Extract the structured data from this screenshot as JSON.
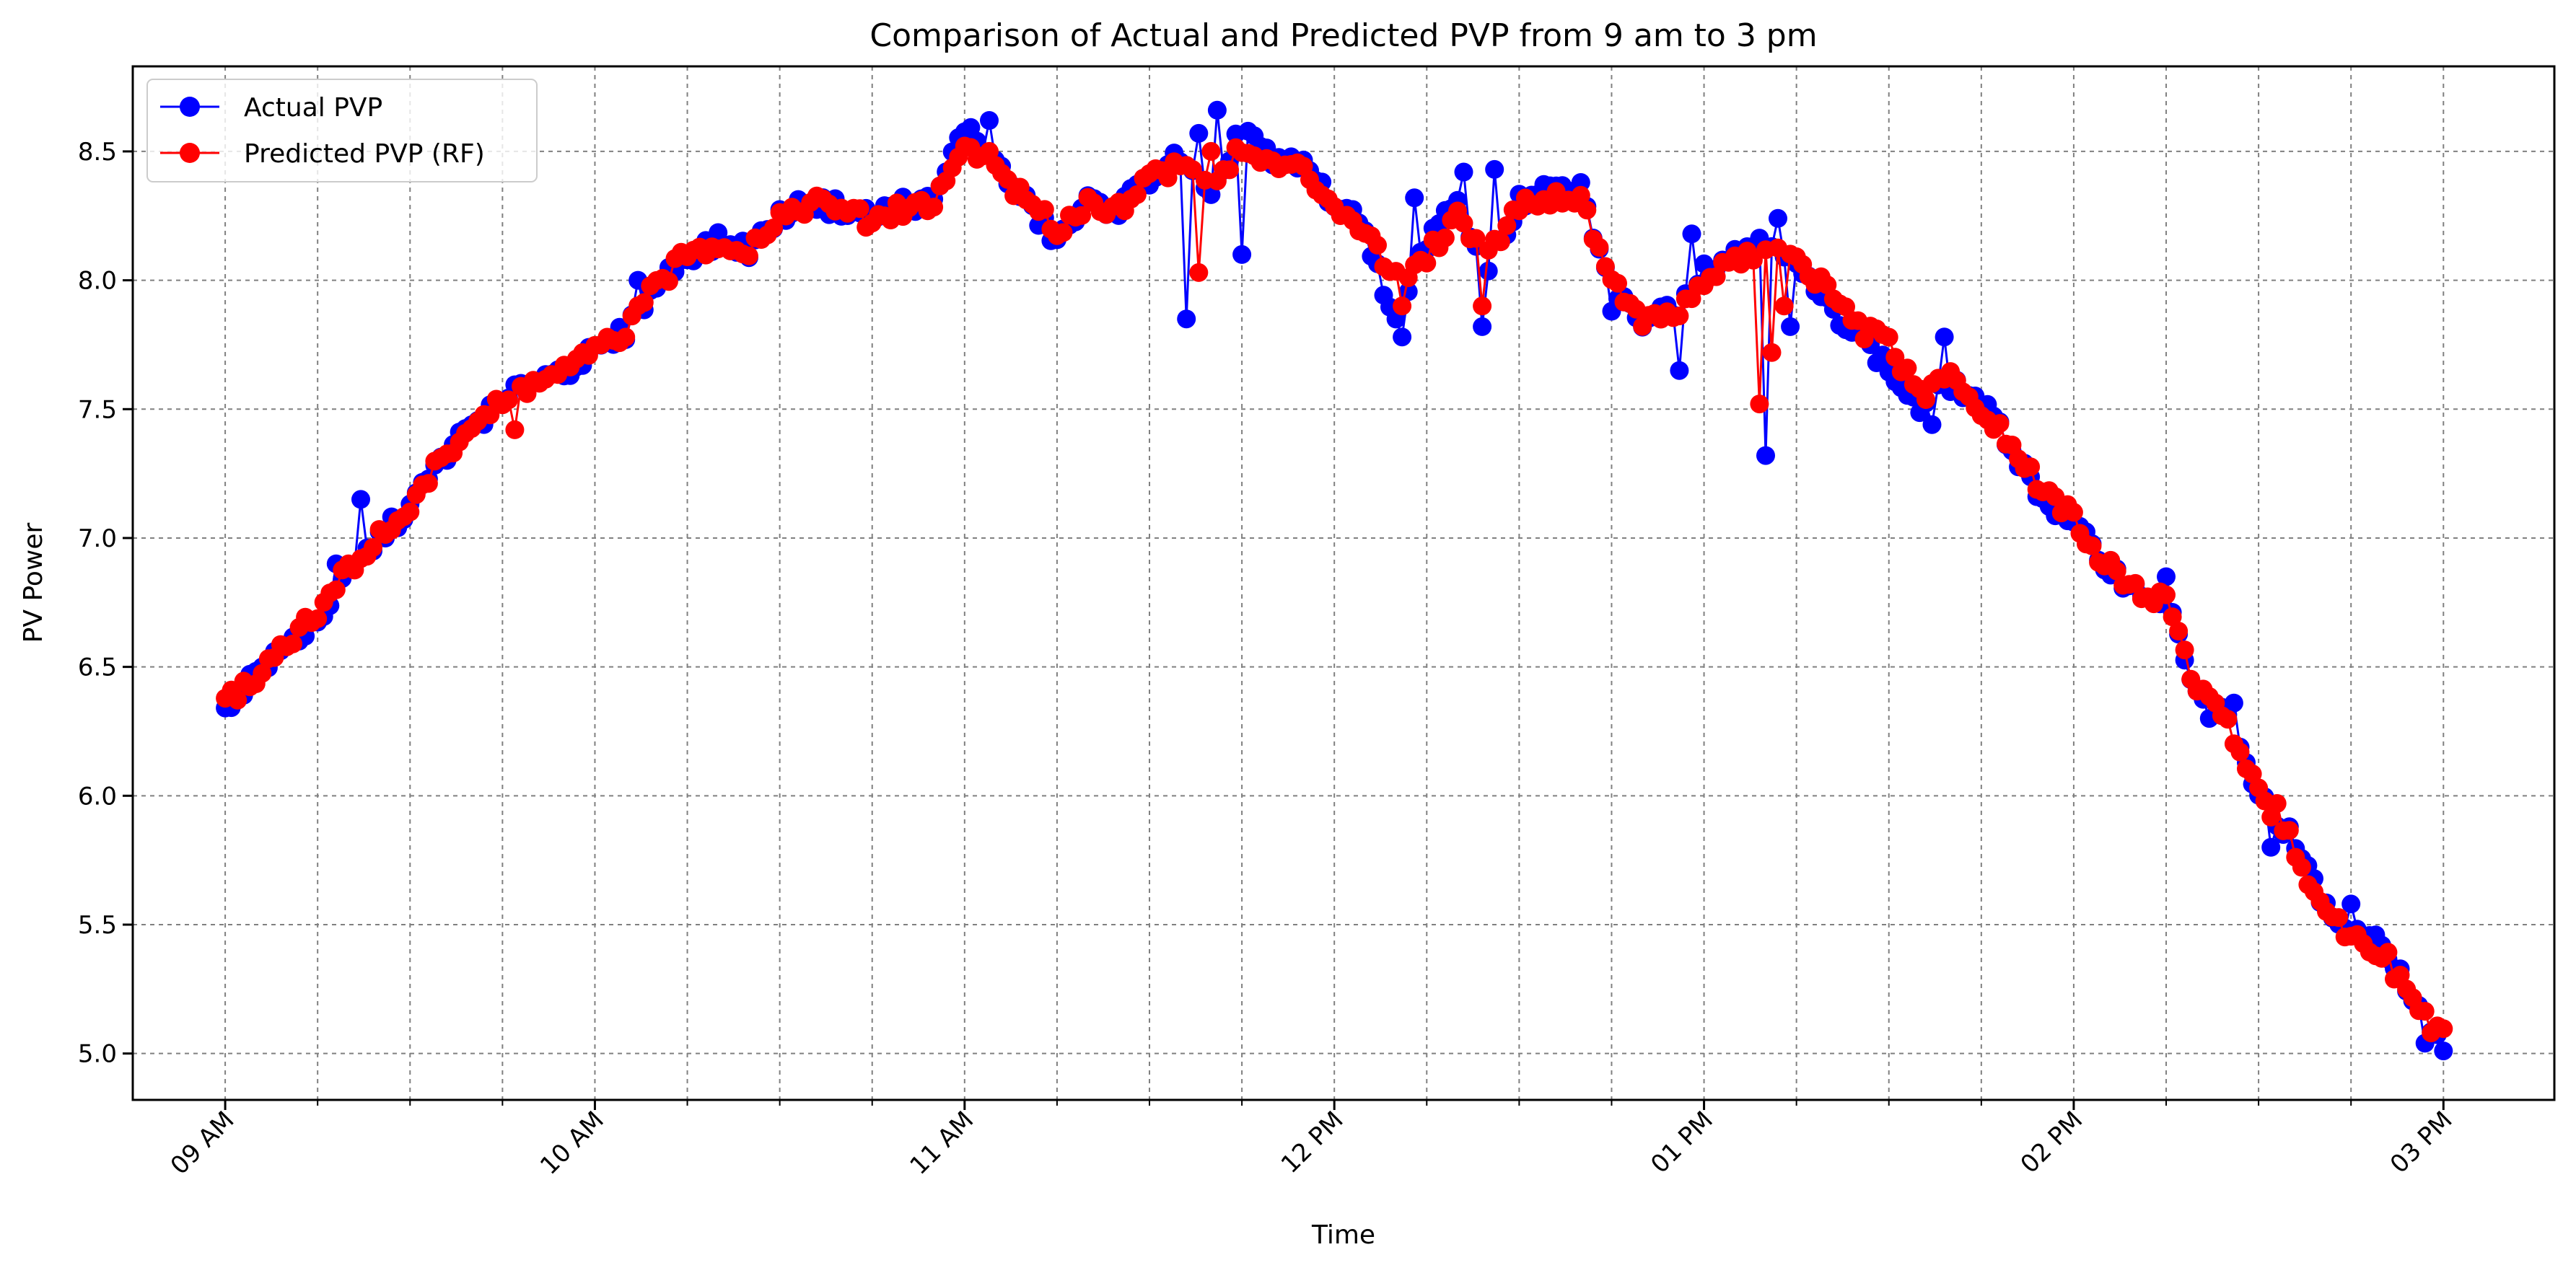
{
  "chart_data": {
    "type": "line",
    "title": "Comparison of Actual and Predicted PVP from 9 am to 3 pm",
    "xlabel": "Time",
    "ylabel": "PV Power",
    "xlim": [
      "08:45",
      "15:18"
    ],
    "ylim": [
      4.82,
      8.83
    ],
    "x_ticks": [
      "09 AM",
      "10 AM",
      "11 AM",
      "12 PM",
      "01 PM",
      "02 PM",
      "03 PM"
    ],
    "y_ticks": [
      "5.0",
      "5.5",
      "6.0",
      "6.5",
      "7.0",
      "7.5",
      "8.0",
      "8.5"
    ],
    "grid": true,
    "legend_position": "top-left",
    "x_sample_interval_minutes": 1,
    "x_start": "09:00",
    "x_end": "15:00",
    "series": [
      {
        "name": "Actual PVP",
        "color": "#0000ff",
        "marker": "circle",
        "anchors": [
          [
            "09:00",
            6.33
          ],
          [
            "09:05",
            6.48
          ],
          [
            "09:10",
            6.58
          ],
          [
            "09:15",
            6.68
          ],
          [
            "09:20",
            6.86
          ],
          [
            "09:25",
            7.0
          ],
          [
            "09:30",
            7.12
          ],
          [
            "09:35",
            7.3
          ],
          [
            "09:40",
            7.44
          ],
          [
            "09:45",
            7.52
          ],
          [
            "09:50",
            7.62
          ],
          [
            "09:55",
            7.65
          ],
          [
            "10:00",
            7.72
          ],
          [
            "10:05",
            7.8
          ],
          [
            "10:10",
            7.98
          ],
          [
            "10:15",
            8.1
          ],
          [
            "10:20",
            8.15
          ],
          [
            "10:25",
            8.12
          ],
          [
            "10:30",
            8.25
          ],
          [
            "10:35",
            8.3
          ],
          [
            "10:40",
            8.28
          ],
          [
            "10:45",
            8.25
          ],
          [
            "10:50",
            8.3
          ],
          [
            "10:55",
            8.3
          ],
          [
            "11:00",
            8.6
          ],
          [
            "11:05",
            8.45
          ],
          [
            "11:10",
            8.3
          ],
          [
            "11:15",
            8.15
          ],
          [
            "11:20",
            8.3
          ],
          [
            "11:25",
            8.28
          ],
          [
            "11:30",
            8.4
          ],
          [
            "11:35",
            8.48
          ],
          [
            "11:40",
            8.3
          ],
          [
            "11:45",
            8.62
          ],
          [
            "11:50",
            8.45
          ],
          [
            "11:55",
            8.45
          ],
          [
            "12:00",
            8.3
          ],
          [
            "12:05",
            8.2
          ],
          [
            "12:10",
            7.82
          ],
          [
            "12:15",
            8.15
          ],
          [
            "12:20",
            8.3
          ],
          [
            "12:25",
            8.05
          ],
          [
            "12:30",
            8.3
          ],
          [
            "12:35",
            8.35
          ],
          [
            "12:40",
            8.35
          ],
          [
            "12:45",
            7.95
          ],
          [
            "12:50",
            7.85
          ],
          [
            "12:55",
            7.9
          ],
          [
            "13:00",
            8.05
          ],
          [
            "13:05",
            8.1
          ],
          [
            "13:10",
            8.18
          ],
          [
            "13:15",
            8.05
          ],
          [
            "13:20",
            7.9
          ],
          [
            "13:25",
            7.8
          ],
          [
            "13:30",
            7.65
          ],
          [
            "13:35",
            7.5
          ],
          [
            "13:40",
            7.6
          ],
          [
            "13:45",
            7.52
          ],
          [
            "13:50",
            7.35
          ],
          [
            "13:55",
            7.15
          ],
          [
            "14:00",
            7.05
          ],
          [
            "14:05",
            6.9
          ],
          [
            "14:10",
            6.8
          ],
          [
            "14:15",
            6.75
          ],
          [
            "14:20",
            6.4
          ],
          [
            "14:25",
            6.3
          ],
          [
            "14:30",
            6.0
          ],
          [
            "14:35",
            5.85
          ],
          [
            "14:40",
            5.6
          ],
          [
            "14:45",
            5.45
          ],
          [
            "14:50",
            5.45
          ],
          [
            "14:55",
            5.2
          ],
          [
            "15:00",
            5.05
          ]
        ],
        "spikes": [
          [
            "09:08",
            6.56
          ],
          [
            "09:18",
            6.9
          ],
          [
            "09:22",
            7.15
          ],
          [
            "10:07",
            8.0
          ],
          [
            "11:04",
            8.62
          ],
          [
            "11:36",
            7.85
          ],
          [
            "11:38",
            8.57
          ],
          [
            "11:41",
            8.66
          ],
          [
            "11:45",
            8.1
          ],
          [
            "11:48",
            8.52
          ],
          [
            "12:11",
            7.78
          ],
          [
            "12:13",
            8.32
          ],
          [
            "12:21",
            8.42
          ],
          [
            "12:24",
            7.82
          ],
          [
            "12:26",
            8.43
          ],
          [
            "12:45",
            7.88
          ],
          [
            "12:56",
            7.65
          ],
          [
            "12:58",
            8.18
          ],
          [
            "13:10",
            7.32
          ],
          [
            "13:12",
            8.24
          ],
          [
            "13:14",
            7.82
          ],
          [
            "13:28",
            7.68
          ],
          [
            "13:37",
            7.44
          ],
          [
            "13:39",
            7.78
          ],
          [
            "14:07",
            6.88
          ],
          [
            "14:15",
            6.85
          ],
          [
            "14:22",
            6.3
          ],
          [
            "14:26",
            6.36
          ],
          [
            "14:32",
            5.8
          ],
          [
            "14:45",
            5.58
          ],
          [
            "14:57",
            5.04
          ],
          [
            "15:00",
            5.01
          ]
        ]
      },
      {
        "name": "Predicted PVP (RF)",
        "color": "#ff0000",
        "marker": "circle",
        "anchors": [
          [
            "09:00",
            6.36
          ],
          [
            "09:05",
            6.46
          ],
          [
            "09:10",
            6.6
          ],
          [
            "09:15",
            6.7
          ],
          [
            "09:20",
            6.88
          ],
          [
            "09:25",
            7.0
          ],
          [
            "09:30",
            7.12
          ],
          [
            "09:35",
            7.3
          ],
          [
            "09:40",
            7.44
          ],
          [
            "09:45",
            7.52
          ],
          [
            "09:50",
            7.6
          ],
          [
            "09:55",
            7.65
          ],
          [
            "10:00",
            7.72
          ],
          [
            "10:05",
            7.8
          ],
          [
            "10:10",
            7.98
          ],
          [
            "10:15",
            8.1
          ],
          [
            "10:20",
            8.15
          ],
          [
            "10:25",
            8.12
          ],
          [
            "10:30",
            8.25
          ],
          [
            "10:35",
            8.3
          ],
          [
            "10:40",
            8.28
          ],
          [
            "10:45",
            8.22
          ],
          [
            "10:50",
            8.28
          ],
          [
            "10:55",
            8.3
          ],
          [
            "11:00",
            8.52
          ],
          [
            "11:05",
            8.45
          ],
          [
            "11:10",
            8.3
          ],
          [
            "11:15",
            8.2
          ],
          [
            "11:20",
            8.3
          ],
          [
            "11:25",
            8.28
          ],
          [
            "11:30",
            8.4
          ],
          [
            "11:35",
            8.45
          ],
          [
            "11:40",
            8.4
          ],
          [
            "11:45",
            8.5
          ],
          [
            "11:50",
            8.45
          ],
          [
            "11:55",
            8.42
          ],
          [
            "12:00",
            8.3
          ],
          [
            "12:05",
            8.2
          ],
          [
            "12:10",
            8.0
          ],
          [
            "12:15",
            8.1
          ],
          [
            "12:20",
            8.25
          ],
          [
            "12:25",
            8.1
          ],
          [
            "12:30",
            8.3
          ],
          [
            "12:35",
            8.32
          ],
          [
            "12:40",
            8.32
          ],
          [
            "12:45",
            8.0
          ],
          [
            "12:50",
            7.85
          ],
          [
            "12:55",
            7.85
          ],
          [
            "13:00",
            8.0
          ],
          [
            "13:05",
            8.08
          ],
          [
            "13:10",
            8.1
          ],
          [
            "13:15",
            8.1
          ],
          [
            "13:20",
            7.95
          ],
          [
            "13:25",
            7.82
          ],
          [
            "13:30",
            7.75
          ],
          [
            "13:35",
            7.55
          ],
          [
            "13:40",
            7.62
          ],
          [
            "13:45",
            7.5
          ],
          [
            "13:50",
            7.35
          ],
          [
            "13:55",
            7.18
          ],
          [
            "14:00",
            7.08
          ],
          [
            "14:05",
            6.9
          ],
          [
            "14:10",
            6.8
          ],
          [
            "14:15",
            6.75
          ],
          [
            "14:20",
            6.42
          ],
          [
            "14:25",
            6.28
          ],
          [
            "14:30",
            6.0
          ],
          [
            "14:35",
            5.85
          ],
          [
            "14:40",
            5.58
          ],
          [
            "14:45",
            5.46
          ],
          [
            "14:50",
            5.4
          ],
          [
            "14:55",
            5.2
          ],
          [
            "15:00",
            5.12
          ]
        ],
        "spikes": [
          [
            "09:47",
            7.42
          ],
          [
            "11:04",
            8.5
          ],
          [
            "11:38",
            8.03
          ],
          [
            "11:40",
            8.5
          ],
          [
            "12:11",
            7.9
          ],
          [
            "12:24",
            7.9
          ],
          [
            "13:09",
            7.52
          ],
          [
            "13:11",
            7.72
          ],
          [
            "13:13",
            7.9
          ],
          [
            "14:33",
            5.97
          ],
          [
            "14:58",
            5.08
          ]
        ]
      }
    ]
  }
}
